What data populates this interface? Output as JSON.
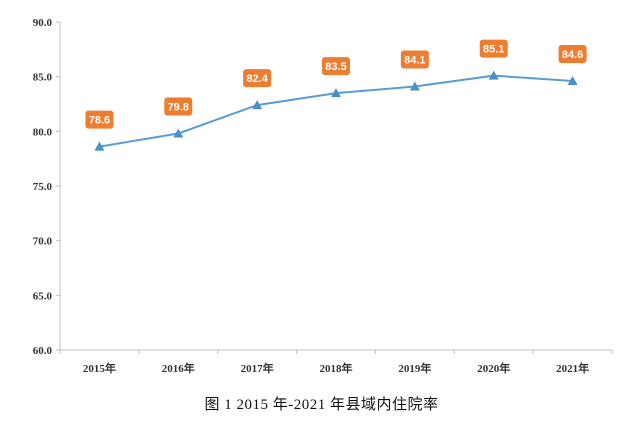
{
  "caption": "图 1   2015 年-2021 年县域内住院率",
  "chart_data": {
    "type": "line",
    "categories": [
      "2015年",
      "2016年",
      "2017年",
      "2018年",
      "2019年",
      "2020年",
      "2021年"
    ],
    "series": [
      {
        "values": [
          78.6,
          79.8,
          82.4,
          83.5,
          84.1,
          85.1,
          84.6
        ]
      }
    ],
    "data_labels": [
      "78.6",
      "79.8",
      "82.4",
      "83.5",
      "84.1",
      "85.1",
      "84.6"
    ],
    "ylim": [
      60.0,
      90.0
    ],
    "yticks": [
      "60.0",
      "65.0",
      "70.0",
      "75.0",
      "80.0",
      "85.0",
      "90.0"
    ],
    "grid": false,
    "colors": {
      "line": "#5B9BD5",
      "marker": "#4A90C8",
      "label_bg": "#ED7D31",
      "axis": "#BFBFBF"
    },
    "marker": "triangle"
  }
}
